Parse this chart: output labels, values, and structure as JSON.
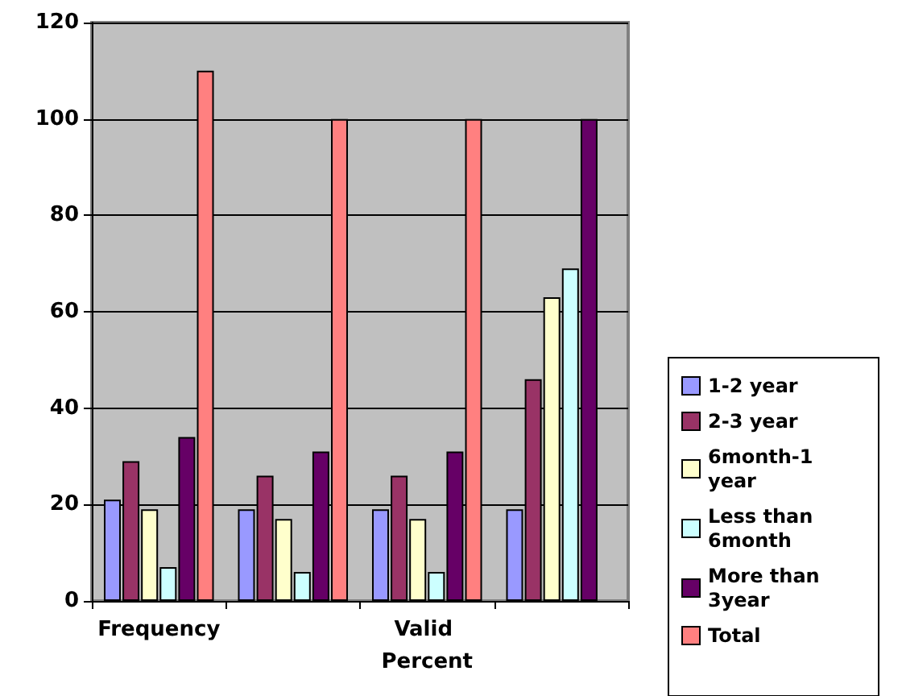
{
  "chart_data": {
    "type": "bar",
    "categories": [
      "Frequency",
      null,
      "Valid Percent",
      null
    ],
    "series": [
      {
        "name": "1-2 year",
        "color": "#9999ff",
        "values": [
          21,
          19,
          19,
          19
        ]
      },
      {
        "name": "2-3 year",
        "color": "#993366",
        "values": [
          29,
          26,
          26,
          46
        ]
      },
      {
        "name": "6month-1 year",
        "color": "#ffffcc",
        "values": [
          19,
          17,
          17,
          63
        ]
      },
      {
        "name": "Less than 6month",
        "color": "#ccffff",
        "values": [
          7,
          6,
          6,
          69
        ]
      },
      {
        "name": "More than 3year",
        "color": "#660066",
        "values": [
          34,
          31,
          31,
          100
        ]
      },
      {
        "name": "Total",
        "color": "#ff8080",
        "values": [
          110,
          100,
          100,
          null
        ]
      }
    ],
    "ylim": [
      0,
      120
    ],
    "yticks": [
      0,
      20,
      40,
      60,
      80,
      100,
      120
    ],
    "grid": "y",
    "legend": "right"
  }
}
